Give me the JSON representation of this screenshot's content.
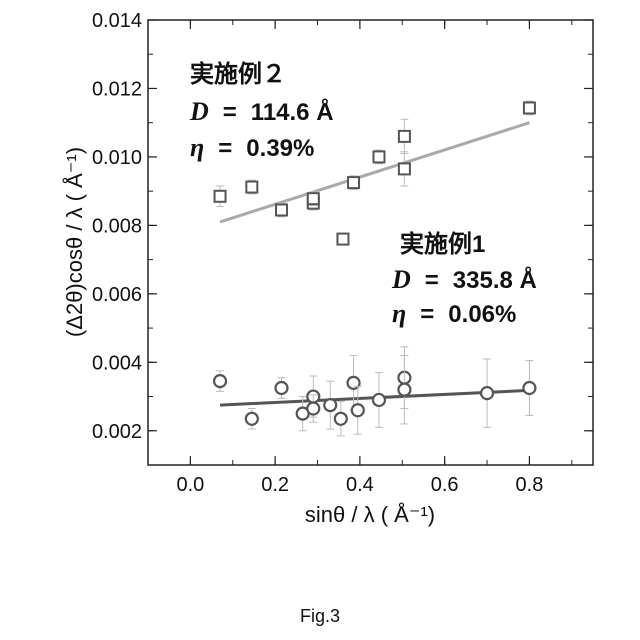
{
  "caption": "Fig.3",
  "chart_data": {
    "type": "scatter",
    "title": "",
    "xlabel": "sinθ / λ ( Å⁻¹)",
    "ylabel": "(Δ2θ)cosθ / λ ( Å⁻¹)",
    "xlim": [
      -0.1,
      0.95
    ],
    "ylim": [
      0.001,
      0.014
    ],
    "xticks": [
      "0.0",
      "0.2",
      "0.4",
      "0.6",
      "0.8"
    ],
    "yticks": [
      "0.002",
      "0.004",
      "0.006",
      "0.008",
      "0.010",
      "0.012",
      "0.014"
    ],
    "grid": false,
    "series": [
      {
        "name": "実施例2",
        "marker": "square",
        "color": "#555555",
        "fit_color": "#aaaaaa",
        "D": "114.6",
        "eta": "0.39%",
        "x": [
          0.07,
          0.145,
          0.215,
          0.29,
          0.29,
          0.36,
          0.385,
          0.445,
          0.505,
          0.505,
          0.8
        ],
        "y": [
          0.00885,
          0.00912,
          0.00845,
          0.00865,
          0.00878,
          0.0076,
          0.00925,
          0.01,
          0.00965,
          0.0106,
          0.01143
        ],
        "err": [
          0.0003,
          0.0002,
          0.0002,
          0.0002,
          0.0002,
          0.0001,
          0.0002,
          0.0002,
          0.0005,
          0.0005,
          0.0002
        ],
        "fit": {
          "x": [
            0.07,
            0.8
          ],
          "y": [
            0.0081,
            0.011
          ]
        }
      },
      {
        "name": "実施例1",
        "marker": "circle",
        "color": "#555555",
        "fit_color": "#555555",
        "D": "335.8",
        "eta": "0.06%",
        "x": [
          0.07,
          0.145,
          0.215,
          0.265,
          0.29,
          0.29,
          0.33,
          0.355,
          0.385,
          0.395,
          0.445,
          0.505,
          0.505,
          0.7,
          0.8
        ],
        "y": [
          0.00345,
          0.00235,
          0.00325,
          0.0025,
          0.003,
          0.00265,
          0.00275,
          0.00235,
          0.0034,
          0.0026,
          0.0029,
          0.00355,
          0.0032,
          0.0031,
          0.00325
        ],
        "err": [
          0.0003,
          0.0003,
          0.0003,
          0.0005,
          0.0006,
          0.0004,
          0.0007,
          0.0005,
          0.0008,
          0.0007,
          0.0008,
          0.0009,
          0.001,
          0.001,
          0.0008
        ],
        "fit": {
          "x": [
            0.07,
            0.8
          ],
          "y": [
            0.00275,
            0.00318
          ]
        }
      }
    ],
    "annotations": {
      "example2": {
        "title": "実施例２",
        "d_label": "D",
        "d_value": "114.6 Å",
        "eta_label": "η",
        "eta_value": "0.39%"
      },
      "example1": {
        "title": "実施例1",
        "d_label": "D",
        "d_value": "335.8 Å",
        "eta_label": "η",
        "eta_value": "0.06%"
      }
    }
  }
}
